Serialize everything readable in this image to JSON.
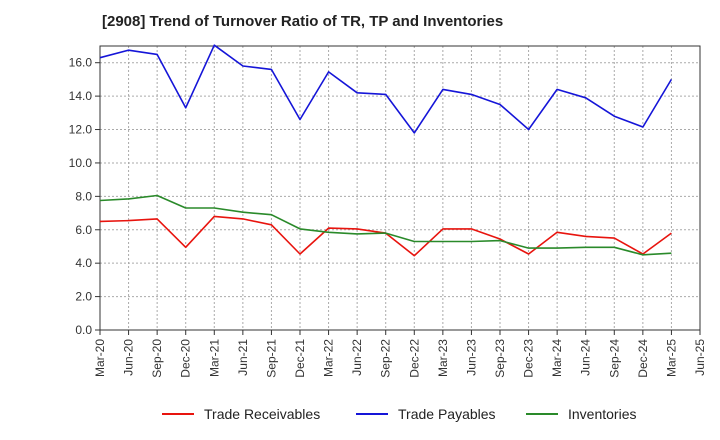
{
  "chart_data": {
    "type": "line",
    "title": "[2908]  Trend of Turnover Ratio of TR, TP and Inventories",
    "xlabel": "",
    "ylabel": "",
    "ylim": [
      0,
      17.0
    ],
    "yticks": [
      "0.0",
      "2.0",
      "4.0",
      "6.0",
      "8.0",
      "10.0",
      "12.0",
      "14.0",
      "16.0"
    ],
    "xticks": [
      "Mar-20",
      "Jun-20",
      "Sep-20",
      "Dec-20",
      "Mar-21",
      "Jun-21",
      "Sep-21",
      "Dec-21",
      "Mar-22",
      "Jun-22",
      "Sep-22",
      "Dec-22",
      "Mar-23",
      "Jun-23",
      "Sep-23",
      "Dec-23",
      "Mar-24",
      "Jun-24",
      "Sep-24",
      "Dec-24",
      "Mar-25",
      "Jun-25"
    ],
    "x": [
      "Mar-20",
      "Jun-20",
      "Sep-20",
      "Dec-20",
      "Mar-21",
      "Jun-21",
      "Sep-21",
      "Dec-21",
      "Mar-22",
      "Jun-22",
      "Sep-22",
      "Dec-22",
      "Mar-23",
      "Jun-23",
      "Sep-23",
      "Dec-23",
      "Mar-24",
      "Jun-24",
      "Sep-24",
      "Dec-24",
      "Mar-25"
    ],
    "grid": true,
    "legend_position": "bottom",
    "series": [
      {
        "name": "Trade Receivables",
        "color": "#e8140e",
        "values": [
          6.5,
          6.55,
          6.65,
          4.95,
          6.8,
          6.65,
          6.3,
          4.55,
          6.1,
          6.05,
          5.8,
          4.45,
          6.05,
          6.05,
          5.45,
          4.55,
          5.85,
          5.6,
          5.5,
          4.55,
          5.8
        ]
      },
      {
        "name": "Trade Payables",
        "color": "#1515d8",
        "values": [
          16.3,
          16.75,
          16.5,
          13.3,
          17.05,
          15.8,
          15.6,
          12.6,
          15.45,
          14.2,
          14.1,
          11.8,
          14.4,
          14.1,
          13.5,
          12.0,
          14.4,
          13.9,
          12.8,
          12.15,
          15.0
        ]
      },
      {
        "name": "Inventories",
        "color": "#2a8a2a",
        "values": [
          7.75,
          7.85,
          8.05,
          7.3,
          7.3,
          7.05,
          6.9,
          6.05,
          5.85,
          5.75,
          5.8,
          5.3,
          5.3,
          5.3,
          5.35,
          4.9,
          4.9,
          4.95,
          4.95,
          4.5,
          4.6
        ]
      }
    ]
  }
}
